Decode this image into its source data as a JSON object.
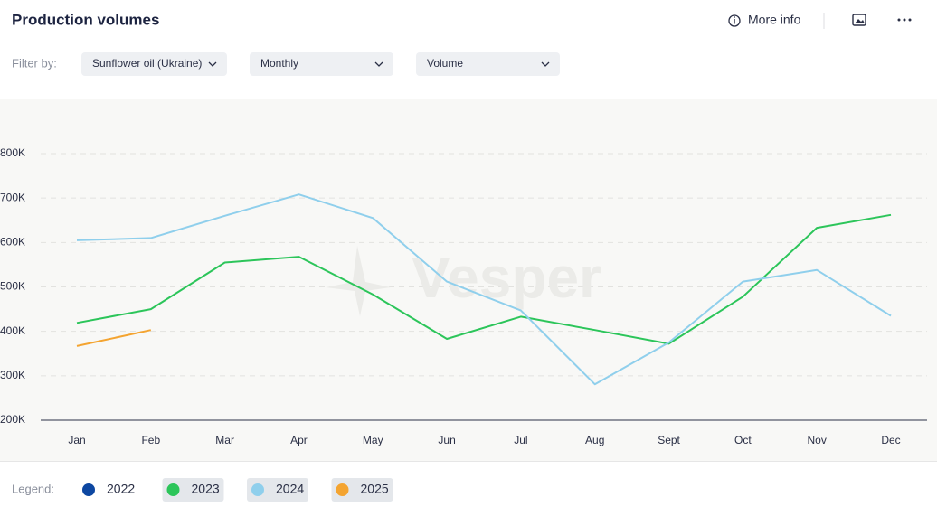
{
  "header": {
    "title": "Production volumes",
    "more_info": "More info"
  },
  "filter": {
    "label": "Filter by:",
    "options": [
      "Sunflower oil (Ukraine)",
      "Monthly",
      "Volume"
    ]
  },
  "watermark": "Vesper",
  "chart_data": {
    "type": "line",
    "categories": [
      "Jan",
      "Feb",
      "Mar",
      "Apr",
      "May",
      "Jun",
      "Jul",
      "Aug",
      "Sept",
      "Oct",
      "Nov",
      "Dec"
    ],
    "series": [
      {
        "name": "2022",
        "color": "#0d47a1",
        "values": [
          null,
          null,
          null,
          null,
          null,
          null,
          null,
          null,
          null,
          null,
          null,
          null
        ]
      },
      {
        "name": "2023",
        "color": "#2cc55a",
        "values": [
          419000,
          450000,
          555000,
          568000,
          483000,
          383000,
          433000,
          403000,
          372000,
          478000,
          633000,
          662000
        ]
      },
      {
        "name": "2024",
        "color": "#8fcfec",
        "values": [
          605000,
          610000,
          660000,
          708000,
          655000,
          512000,
          447000,
          281000,
          375000,
          512000,
          538000,
          435000
        ]
      },
      {
        "name": "2025",
        "color": "#f4a430",
        "values": [
          367000,
          403000,
          null,
          null,
          null,
          null,
          null,
          null,
          null,
          null,
          null,
          null
        ]
      }
    ],
    "ylim": [
      200000,
      800000
    ],
    "yticks": [
      {
        "value": 200000,
        "label": "200K"
      },
      {
        "value": 300000,
        "label": "300K"
      },
      {
        "value": 400000,
        "label": "400K"
      },
      {
        "value": 500000,
        "label": "500K"
      },
      {
        "value": 600000,
        "label": "600K"
      },
      {
        "value": 700000,
        "label": "700K"
      },
      {
        "value": 800000,
        "label": "800K"
      }
    ],
    "grid": true,
    "legend_label": "Legend:",
    "legend": "bottom-left"
  }
}
